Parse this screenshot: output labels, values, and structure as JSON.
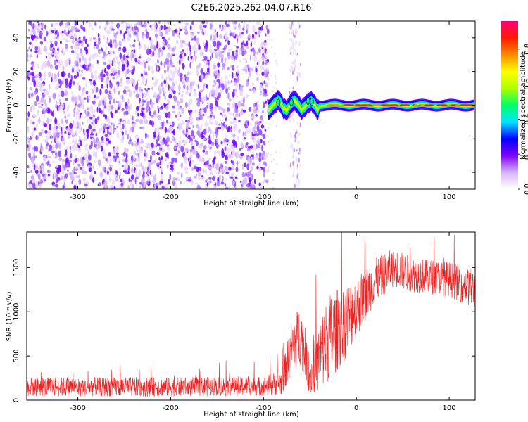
{
  "figure": {
    "title": "C2E6.2025.262.04.07.R16"
  },
  "colorbar": {
    "label": "Normalized spectral amplitude",
    "ticks": [
      "0.0",
      "0.2",
      "0.4",
      "0.6",
      "0.8"
    ],
    "range": [
      0,
      0.96
    ],
    "stops": [
      "#ffffff",
      "#d8b4ff",
      "#7f00ff",
      "#0000ff",
      "#00e5ff",
      "#00ff66",
      "#b0ff00",
      "#ffff00",
      "#ff8800",
      "#ff1a00",
      "#ff0077"
    ]
  },
  "chart_data": [
    {
      "type": "heatmap",
      "xlabel": "Height of straight line (km)",
      "ylabel": "Frequency (Hz)",
      "xlim": [
        -355,
        128
      ],
      "ylim": [
        -50,
        50
      ],
      "xticks": [
        -300,
        -200,
        -100,
        0,
        100
      ],
      "yticks": [
        -40,
        -20,
        0,
        20,
        40
      ],
      "regions": [
        {
          "x_range": [
            -355,
            -95
          ],
          "description_level": 0.15
        },
        {
          "x_range": [
            -95,
            -30
          ],
          "center_hz": 0,
          "peak_level": 0.35
        },
        {
          "x_range": [
            -30,
            128
          ],
          "center_hz": 0,
          "peak_level": 0.9
        }
      ]
    },
    {
      "type": "line",
      "xlabel": "Height of straight line (km)",
      "ylabel": "SNR (10 * v/v)",
      "xlim": [
        -355,
        128
      ],
      "ylim": [
        0,
        1900
      ],
      "xticks": [
        -300,
        -200,
        -100,
        0,
        100
      ],
      "yticks": [
        0,
        500,
        1000,
        1500
      ],
      "series_color": "#ee2222",
      "envelope": [
        {
          "x": -355,
          "mean": 150,
          "spread": 110
        },
        {
          "x": -200,
          "mean": 150,
          "spread": 110
        },
        {
          "x": -100,
          "mean": 160,
          "spread": 110
        },
        {
          "x": -80,
          "mean": 200,
          "spread": 150
        },
        {
          "x": -70,
          "mean": 600,
          "spread": 300
        },
        {
          "x": -60,
          "mean": 750,
          "spread": 350
        },
        {
          "x": -50,
          "mean": 250,
          "spread": 200
        },
        {
          "x": -40,
          "mean": 500,
          "spread": 400
        },
        {
          "x": -30,
          "mean": 700,
          "spread": 500
        },
        {
          "x": -15,
          "mean": 850,
          "spread": 450
        },
        {
          "x": 0,
          "mean": 1050,
          "spread": 350
        },
        {
          "x": 20,
          "mean": 1350,
          "spread": 250
        },
        {
          "x": 40,
          "mean": 1500,
          "spread": 220
        },
        {
          "x": 60,
          "mean": 1420,
          "spread": 200
        },
        {
          "x": 100,
          "mean": 1370,
          "spread": 200
        },
        {
          "x": 128,
          "mean": 1250,
          "spread": 220
        }
      ]
    }
  ]
}
